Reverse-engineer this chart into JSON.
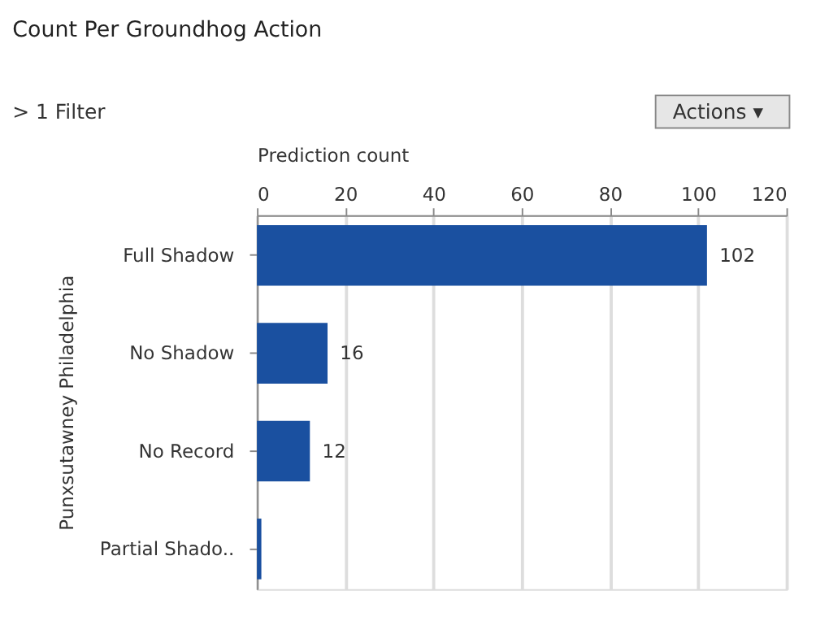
{
  "chart_data": {
    "type": "bar",
    "orientation": "horizontal",
    "title": "Count Per Groundhog Action",
    "annotations": [
      "> 1 Filter",
      "Actions ▾"
    ],
    "xlabel": "Prediction count",
    "ylabel": "Punxsutawney Philadelphia",
    "categories": [
      "Full Shadow",
      "No Shadow",
      "No Record",
      "Partial Shado.."
    ],
    "values": [
      102,
      16,
      12,
      1
    ],
    "color": "#1a50a0",
    "value_labels": [
      "102",
      "16",
      "12",
      null
    ],
    "xlim": [
      0,
      120
    ],
    "xticks": [
      0,
      20,
      40,
      60,
      80,
      100,
      120
    ],
    "grid": "x"
  }
}
